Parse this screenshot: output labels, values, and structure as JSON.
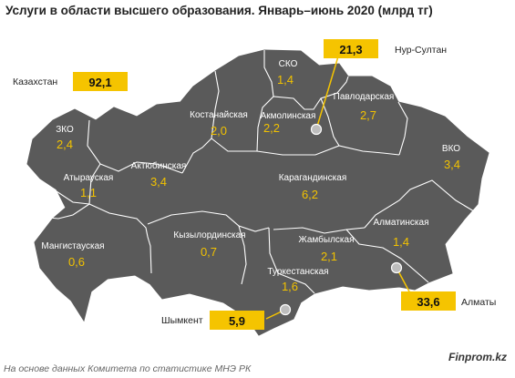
{
  "title": "Услуги в области высшего образования. Январь–июнь 2020 (млрд тг)",
  "footer": "На основе данных Комитета по статистике МНЭ РК",
  "brand": "Finprom.kz",
  "colors": {
    "region_fill": "#5a5a5a",
    "border": "#ffffff",
    "value": "#f2c200",
    "box": "#f5c400"
  },
  "total": {
    "label": "Казахстан",
    "value": "92,1"
  },
  "regions": [
    {
      "id": "sko",
      "name": "СКО",
      "value": "1,4"
    },
    {
      "id": "kostanay",
      "name": "Костанайская",
      "value": "2,0"
    },
    {
      "id": "akmola",
      "name": "Акмолинская",
      "value": "2,2"
    },
    {
      "id": "pavlodar",
      "name": "Павлодарская",
      "value": "2,7"
    },
    {
      "id": "zko",
      "name": "ЗКО",
      "value": "2,4"
    },
    {
      "id": "vko",
      "name": "ВКО",
      "value": "3,4"
    },
    {
      "id": "atyrau",
      "name": "Атырауская",
      "value": "1,1"
    },
    {
      "id": "aktobe",
      "name": "Актюбинская",
      "value": "3,4"
    },
    {
      "id": "karaganda",
      "name": "Карагандинская",
      "value": "6,2"
    },
    {
      "id": "almaty_reg",
      "name": "Алматинская",
      "value": "1,4"
    },
    {
      "id": "mangystau",
      "name": "Мангистауская",
      "value": "0,6"
    },
    {
      "id": "kyzylorda",
      "name": "Кызылординская",
      "value": "0,7"
    },
    {
      "id": "zhambyl",
      "name": "Жамбылская",
      "value": "2,1"
    },
    {
      "id": "turkestan",
      "name": "Туркестанская",
      "value": "1,6"
    }
  ],
  "cities": [
    {
      "id": "nur_sultan",
      "name": "Нур-Султан",
      "value": "21,3"
    },
    {
      "id": "almaty",
      "name": "Алматы",
      "value": "33,6"
    },
    {
      "id": "shymkent",
      "name": "Шымкент",
      "value": "5,9"
    }
  ]
}
